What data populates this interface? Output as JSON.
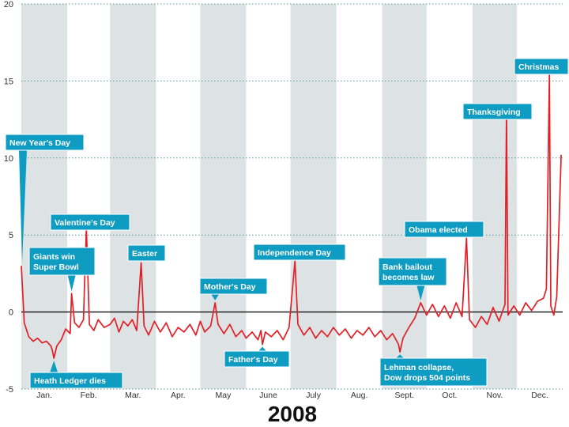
{
  "colors": {
    "line": "#e21f26",
    "band": "#dde3e4",
    "grid": "#4e9a96",
    "zero": "#111111",
    "callout": "#0f9cc2"
  },
  "chart_data": {
    "type": "line",
    "title": "",
    "xlabel": "2008",
    "ylabel": "",
    "ylim": [
      -5,
      20
    ],
    "yticks": [
      "20",
      "15",
      "10",
      "5",
      "0",
      "-5"
    ],
    "grid": "dotted horizontal",
    "months": [
      "Jan.",
      "Feb.",
      "Mar.",
      "Apr.",
      "May",
      "June",
      "July",
      "Aug.",
      "Sept.",
      "Oct.",
      "Nov.",
      "Dec."
    ],
    "series": [
      {
        "points": [
          [
            0,
            3
          ],
          [
            2,
            -0.7
          ],
          [
            5,
            -1.6
          ],
          [
            8,
            -1.9
          ],
          [
            11,
            -1.7
          ],
          [
            14,
            -2.0
          ],
          [
            17,
            -1.9
          ],
          [
            20,
            -2.2
          ],
          [
            21,
            -2.5
          ],
          [
            22,
            -3.0
          ],
          [
            24,
            -2.2
          ],
          [
            27,
            -1.8
          ],
          [
            30,
            -1.1
          ],
          [
            33,
            -1.4
          ],
          [
            34,
            1.2
          ],
          [
            36,
            -0.7
          ],
          [
            39,
            -1.0
          ],
          [
            42,
            -0.5
          ],
          [
            44,
            5.5
          ],
          [
            46,
            -0.8
          ],
          [
            49,
            -1.2
          ],
          [
            52,
            -0.5
          ],
          [
            56,
            -1.0
          ],
          [
            60,
            -0.8
          ],
          [
            63,
            -0.4
          ],
          [
            66,
            -1.3
          ],
          [
            69,
            -0.6
          ],
          [
            72,
            -0.9
          ],
          [
            75,
            -0.5
          ],
          [
            78,
            -1.2
          ],
          [
            81,
            3.2
          ],
          [
            83,
            -0.9
          ],
          [
            86,
            -1.5
          ],
          [
            90,
            -0.6
          ],
          [
            94,
            -1.3
          ],
          [
            98,
            -0.7
          ],
          [
            102,
            -1.6
          ],
          [
            106,
            -1.0
          ],
          [
            110,
            -1.3
          ],
          [
            114,
            -0.8
          ],
          [
            118,
            -1.5
          ],
          [
            121,
            -0.6
          ],
          [
            124,
            -1.3
          ],
          [
            128,
            -0.9
          ],
          [
            131,
            0.6
          ],
          [
            133,
            -0.8
          ],
          [
            137,
            -1.4
          ],
          [
            141,
            -0.8
          ],
          [
            145,
            -1.6
          ],
          [
            149,
            -1.2
          ],
          [
            152,
            -1.7
          ],
          [
            156,
            -1.3
          ],
          [
            160,
            -1.8
          ],
          [
            162,
            -1.2
          ],
          [
            163,
            -2.1
          ],
          [
            165,
            -1.3
          ],
          [
            169,
            -1.6
          ],
          [
            173,
            -1.2
          ],
          [
            177,
            -1.8
          ],
          [
            181,
            -1.0
          ],
          [
            185,
            3.3
          ],
          [
            187,
            -0.8
          ],
          [
            191,
            -1.5
          ],
          [
            195,
            -1.0
          ],
          [
            199,
            -1.7
          ],
          [
            203,
            -1.2
          ],
          [
            207,
            -1.6
          ],
          [
            211,
            -1.0
          ],
          [
            215,
            -1.5
          ],
          [
            219,
            -1.1
          ],
          [
            223,
            -1.7
          ],
          [
            227,
            -1.2
          ],
          [
            231,
            -1.5
          ],
          [
            235,
            -1.0
          ],
          [
            239,
            -1.6
          ],
          [
            243,
            -1.2
          ],
          [
            247,
            -1.8
          ],
          [
            251,
            -1.4
          ],
          [
            255,
            -2.1
          ],
          [
            256,
            -2.6
          ],
          [
            258,
            -1.7
          ],
          [
            262,
            -1.0
          ],
          [
            266,
            -0.4
          ],
          [
            270,
            0.6
          ],
          [
            274,
            -0.2
          ],
          [
            278,
            0.5
          ],
          [
            282,
            -0.3
          ],
          [
            286,
            0.4
          ],
          [
            290,
            -0.4
          ],
          [
            294,
            0.6
          ],
          [
            298,
            -0.3
          ],
          [
            301,
            4.8
          ],
          [
            303,
            -0.5
          ],
          [
            307,
            -1.0
          ],
          [
            311,
            -0.3
          ],
          [
            315,
            -0.8
          ],
          [
            319,
            0.3
          ],
          [
            323,
            -0.6
          ],
          [
            327,
            0.5
          ],
          [
            328,
            13
          ],
          [
            329,
            -0.2
          ],
          [
            333,
            0.4
          ],
          [
            337,
            -0.2
          ],
          [
            341,
            0.6
          ],
          [
            345,
            0.1
          ],
          [
            349,
            0.7
          ],
          [
            353,
            0.9
          ],
          [
            355,
            1.5
          ],
          [
            357,
            15.5
          ],
          [
            358,
            0.4
          ],
          [
            360,
            -0.2
          ],
          [
            362,
            1
          ],
          [
            365,
            10.2
          ]
        ]
      }
    ],
    "annotations": [
      {
        "label": "New Year's Day",
        "day": 0,
        "value": 3
      },
      {
        "label": "Giants win\nSuper Bowl",
        "day": 34,
        "value": 1.2
      },
      {
        "label": "Valentine's Day",
        "day": 44,
        "value": 5.5
      },
      {
        "label": "Easter",
        "day": 81,
        "value": 3.2
      },
      {
        "label": "Mother's Day",
        "day": 131,
        "value": 0.6
      },
      {
        "label": "Independence Day",
        "day": 185,
        "value": 3.3
      },
      {
        "label": "Heath Ledger dies",
        "day": 22,
        "value": -3.0
      },
      {
        "label": "Father's Day",
        "day": 163,
        "value": -2.1
      },
      {
        "label": "Bank bailout\nbecomes law",
        "day": 270,
        "value": 0.6
      },
      {
        "label": "Lehman collapse,\nDow drops 504 points",
        "day": 256,
        "value": -2.6
      },
      {
        "label": "Obama elected",
        "day": 301,
        "value": 4.8
      },
      {
        "label": "Thanksgiving",
        "day": 328,
        "value": 13
      },
      {
        "label": "Christmas",
        "day": 357,
        "value": 15.5
      }
    ]
  }
}
